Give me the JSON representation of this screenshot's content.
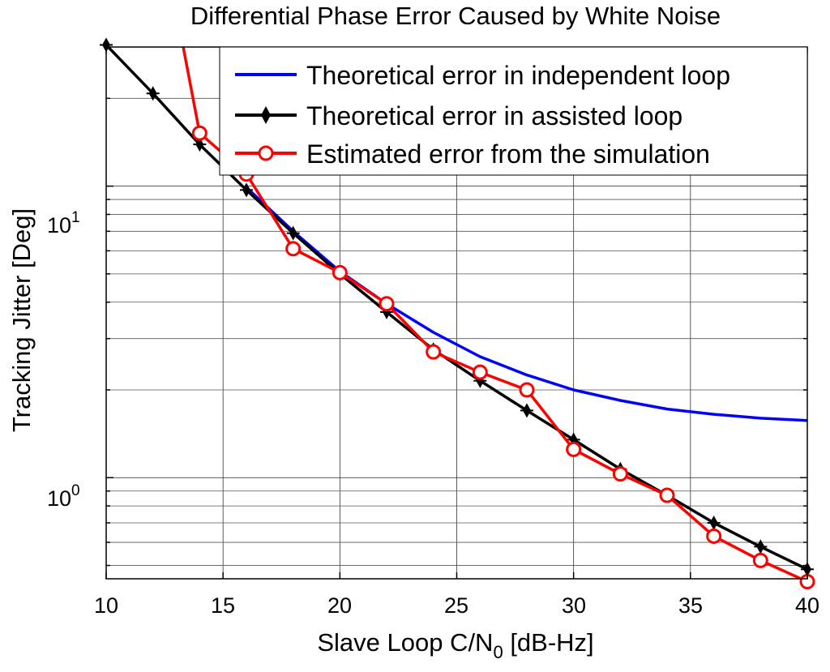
{
  "chart_data": {
    "type": "line",
    "title": "Differential Phase Error Caused by White Noise",
    "xlabel_main": "Slave Loop C/N",
    "xlabel_sub": "0",
    "xlabel_tail": " [dB-Hz]",
    "ylabel": "Tracking Jitter [Deg]",
    "xlim": [
      10,
      40
    ],
    "ylim": [
      0.45,
      30
    ],
    "yscale": "log",
    "grid": true,
    "x_ticks": [
      10,
      15,
      20,
      25,
      30,
      35,
      40
    ],
    "x_tick_labels": [
      "10",
      "15",
      "20",
      "25",
      "30",
      "35",
      "40"
    ],
    "y_tick_labels": [
      {
        "value": 1,
        "base": "10",
        "exp": "0"
      },
      {
        "value": 10,
        "base": "10",
        "exp": "1"
      }
    ],
    "legend_position": "top-right",
    "series": [
      {
        "name": "Theoretical error in independent loop",
        "color": "#0000ff",
        "marker": "none",
        "x": [
          16,
          18,
          20,
          22,
          24,
          26,
          28,
          30,
          32,
          34,
          36,
          38,
          40
        ],
        "values": [
          9.9,
          7.0,
          5.1,
          3.95,
          3.15,
          2.6,
          2.25,
          2.0,
          1.84,
          1.72,
          1.65,
          1.6,
          1.57
        ]
      },
      {
        "name": "Theoretical error in assisted loop",
        "color": "#000000",
        "marker": "diamond",
        "x": [
          10,
          12,
          14,
          16,
          18,
          20,
          22,
          24,
          26,
          28,
          30,
          32,
          34,
          36,
          38,
          40
        ],
        "values": [
          30.5,
          20.8,
          13.9,
          9.7,
          6.9,
          5.0,
          3.7,
          2.75,
          2.15,
          1.7,
          1.35,
          1.07,
          0.87,
          0.7,
          0.58,
          0.485
        ]
      },
      {
        "name": "Estimated error from the simulation",
        "color": "#ff0000",
        "marker": "circle",
        "line_start": [
          13.0,
          40.0
        ],
        "x": [
          14,
          16,
          18,
          20,
          22,
          24,
          26,
          28,
          30,
          32,
          34,
          36,
          38,
          40
        ],
        "values": [
          15.2,
          11.0,
          6.1,
          5.05,
          3.95,
          2.7,
          2.3,
          2.0,
          1.25,
          1.03,
          0.87,
          0.63,
          0.52,
          0.44
        ]
      }
    ]
  }
}
